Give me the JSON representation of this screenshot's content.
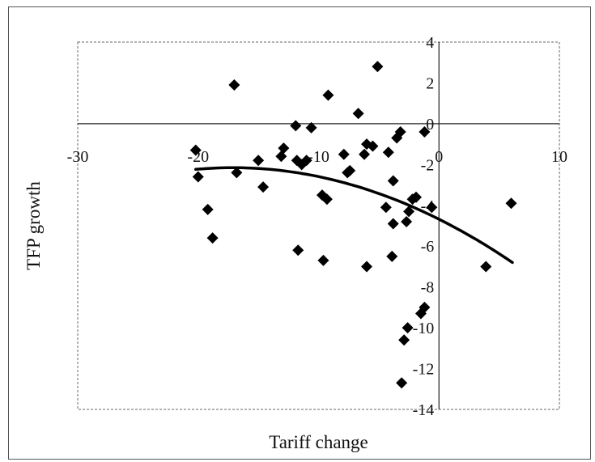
{
  "chart_data": {
    "type": "scatter",
    "title": "",
    "xlabel": "Tariff change",
    "ylabel": "TFP growth",
    "xlim": [
      -30,
      10
    ],
    "ylim": [
      -14,
      4
    ],
    "x_ticks": [
      -30,
      -20,
      -10,
      0,
      10
    ],
    "y_ticks": [
      4,
      2,
      0,
      -2,
      -4,
      -6,
      -8,
      -10,
      -12,
      -14
    ],
    "x_tick_labels": [
      "-30",
      "-20",
      "-10",
      "0",
      "10"
    ],
    "y_tick_labels": [
      "4",
      "2",
      "0",
      "-2",
      "-4",
      "-6",
      "-8",
      "-10",
      "-12",
      "-14"
    ],
    "grid": false,
    "legend": "none",
    "marker": "diamond",
    "marker_color": "#000000",
    "points": [
      [
        -20.2,
        -1.3
      ],
      [
        -20.0,
        -2.6
      ],
      [
        -19.2,
        -4.2
      ],
      [
        -18.8,
        -5.6
      ],
      [
        -17.0,
        1.9
      ],
      [
        -16.8,
        -2.4
      ],
      [
        -15.0,
        -1.8
      ],
      [
        -14.6,
        -3.1
      ],
      [
        -13.1,
        -1.6
      ],
      [
        -12.9,
        -1.2
      ],
      [
        -11.9,
        -0.1
      ],
      [
        -11.8,
        -1.8
      ],
      [
        -11.7,
        -6.2
      ],
      [
        -11.4,
        -2.0
      ],
      [
        -11.0,
        -1.8
      ],
      [
        -10.6,
        -0.2
      ],
      [
        -9.7,
        -3.5
      ],
      [
        -9.6,
        -6.7
      ],
      [
        -9.3,
        -3.7
      ],
      [
        -9.2,
        1.4
      ],
      [
        -7.9,
        -1.5
      ],
      [
        -7.6,
        -2.4
      ],
      [
        -7.4,
        -2.3
      ],
      [
        -6.7,
        0.5
      ],
      [
        -6.2,
        -1.5
      ],
      [
        -6.0,
        -1.0
      ],
      [
        -6.0,
        -7.0
      ],
      [
        -5.5,
        -1.1
      ],
      [
        -5.1,
        2.8
      ],
      [
        -4.4,
        -4.1
      ],
      [
        -4.2,
        -1.4
      ],
      [
        -3.9,
        -6.5
      ],
      [
        -3.8,
        -2.8
      ],
      [
        -3.8,
        -4.9
      ],
      [
        -3.5,
        -0.7
      ],
      [
        -3.2,
        -0.4
      ],
      [
        -3.1,
        -12.7
      ],
      [
        -2.9,
        -10.6
      ],
      [
        -2.7,
        -4.8
      ],
      [
        -2.6,
        -10.0
      ],
      [
        -2.5,
        -4.3
      ],
      [
        -2.2,
        -3.7
      ],
      [
        -1.9,
        -3.6
      ],
      [
        -1.5,
        -9.3
      ],
      [
        -1.2,
        -0.4
      ],
      [
        -1.2,
        -9.0
      ],
      [
        -0.6,
        -4.1
      ],
      [
        3.9,
        -7.0
      ],
      [
        6.0,
        -3.9
      ]
    ],
    "trendline": {
      "type": "quadratic",
      "x_range": [
        -20.2,
        6.1
      ],
      "coefficients": [
        -4.68,
        -0.295,
        -0.00862
      ]
    }
  }
}
